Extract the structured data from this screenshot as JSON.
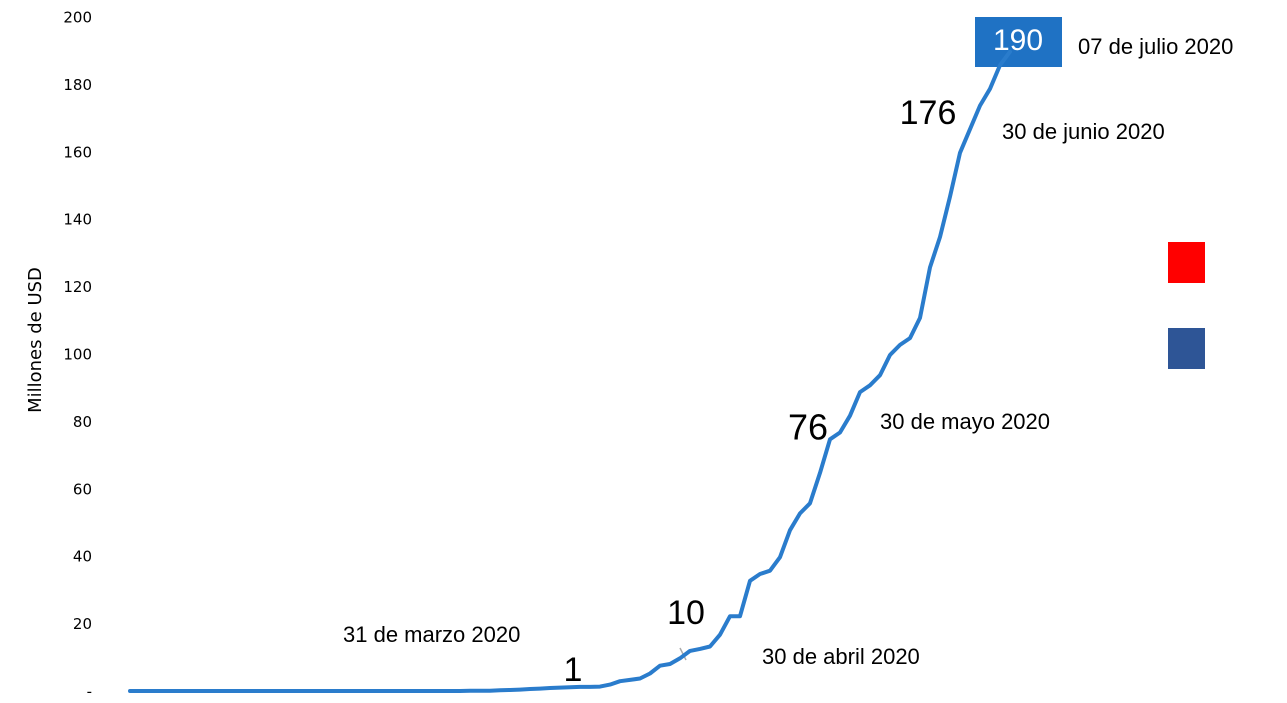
{
  "chart_data": {
    "type": "line",
    "ylabel": "Millones de USD",
    "ylim": [
      0,
      200
    ],
    "yticks": [
      {
        "value": 0,
        "label": "-"
      },
      20,
      40,
      60,
      80,
      100,
      120,
      140,
      160,
      180,
      200
    ],
    "grid": false,
    "categories": [
      null,
      null,
      null,
      null,
      null,
      null,
      null,
      null,
      null,
      null,
      null,
      null,
      null,
      null,
      null,
      null,
      null,
      null,
      null,
      null,
      null,
      null,
      null,
      null,
      null,
      null,
      null,
      null,
      null,
      null,
      null,
      null,
      null,
      null,
      null,
      null,
      null,
      null,
      null,
      null,
      null,
      null,
      null,
      null,
      null,
      null,
      null,
      null,
      null,
      null,
      null,
      null,
      null,
      null,
      null,
      null,
      null,
      null,
      null,
      null,
      null,
      null,
      null,
      null,
      null,
      null,
      null,
      null,
      null,
      null,
      null,
      null,
      null,
      null,
      null,
      null,
      null,
      null,
      null,
      null,
      null,
      null,
      null,
      null,
      null,
      null,
      null,
      null,
      null
    ],
    "series": [
      {
        "color": "#2a7ccc",
        "values": [
          0.3,
          0.3,
          0.3,
          0.3,
          0.3,
          0.3,
          0.3,
          0.3,
          0.3,
          0.3,
          0.3,
          0.3,
          0.3,
          0.3,
          0.3,
          0.3,
          0.3,
          0.3,
          0.3,
          0.3,
          0.3,
          0.3,
          0.3,
          0.3,
          0.3,
          0.3,
          0.3,
          0.3,
          0.3,
          0.3,
          0.3,
          0.3,
          0.3,
          0.3,
          0.4,
          0.4,
          0.4,
          0.5,
          0.6,
          0.7,
          0.9,
          1.0,
          1.2,
          1.3,
          1.4,
          1.5,
          1.5,
          1.6,
          2.2,
          3.2,
          3.6,
          4.0,
          5.5,
          7.8,
          8.3,
          10.0,
          12.2,
          12.8,
          13.5,
          17,
          22.5,
          22.5,
          33,
          35,
          36,
          40,
          48,
          53,
          56,
          65,
          75,
          77,
          82,
          89,
          91,
          94,
          100,
          103,
          105,
          111,
          126,
          135,
          147,
          160,
          167,
          174,
          179,
          186,
          190
        ]
      }
    ],
    "annotations": [
      "190",
      "07 de julio 2020",
      "176",
      "30 de junio 2020",
      "76",
      "30 de mayo 2020",
      "10",
      "30 de abril 2020",
      "1",
      "31 de marzo 2020"
    ]
  }
}
